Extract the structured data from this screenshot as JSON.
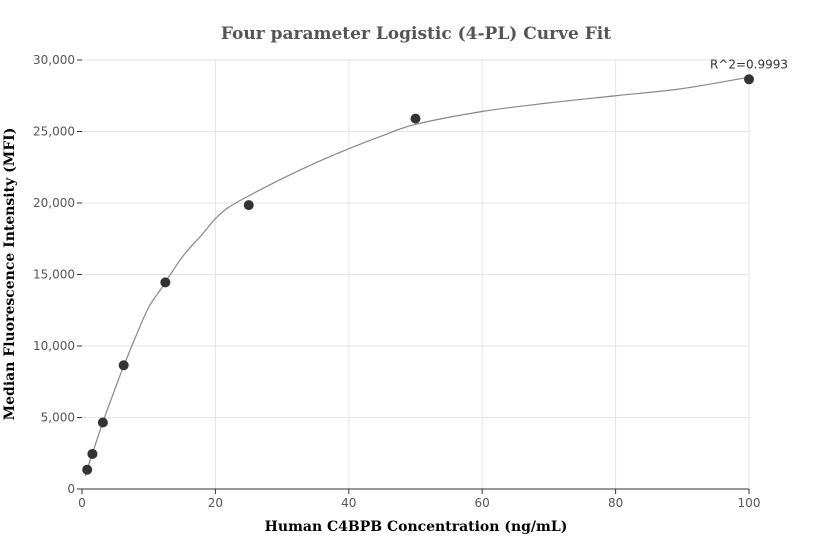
{
  "chart_data": {
    "type": "scatter",
    "title": "Four parameter Logistic (4-PL) Curve Fit",
    "xlabel": "Human C4BPB Concentration (ng/mL)",
    "ylabel": "Median Fluorescence Intensity (MFI)",
    "xlim": [
      0,
      100
    ],
    "ylim": [
      0,
      30000
    ],
    "x_ticks": [
      0,
      20,
      40,
      60,
      80,
      100
    ],
    "y_ticks": [
      0,
      5000,
      10000,
      15000,
      20000,
      25000,
      30000
    ],
    "x_tick_labels": [
      "0",
      "20",
      "40",
      "60",
      "80",
      "100"
    ],
    "y_tick_labels": [
      "0",
      "5,000",
      "10,000",
      "15,000",
      "20,000",
      "25,000",
      "30,000"
    ],
    "grid": true,
    "series": [
      {
        "x": [
          0.78,
          1.56,
          3.13,
          6.25,
          12.5,
          25,
          50,
          100
        ],
        "y": [
          1350,
          2450,
          4650,
          8650,
          14450,
          19850,
          25900,
          28650
        ]
      }
    ],
    "fit_curve": {
      "x": [
        0.5,
        1,
        2,
        3,
        4,
        6,
        8,
        10,
        12,
        15,
        18,
        20,
        22,
        25,
        30,
        35,
        40,
        45,
        50,
        60,
        70,
        80,
        90,
        100
      ],
      "y": [
        900,
        1700,
        3100,
        4500,
        5800,
        8300,
        10600,
        12700,
        14100,
        16200,
        17800,
        18900,
        19700,
        20500,
        21700,
        22800,
        23800,
        24700,
        25500,
        26400,
        27000,
        27500,
        28000,
        28800
      ]
    },
    "annotation": {
      "text": "R^2=0.9993",
      "x": 100,
      "y": 28650
    },
    "colors": {
      "points": "#333333",
      "curve": "#888888",
      "grid": "#e6e6e6"
    }
  }
}
